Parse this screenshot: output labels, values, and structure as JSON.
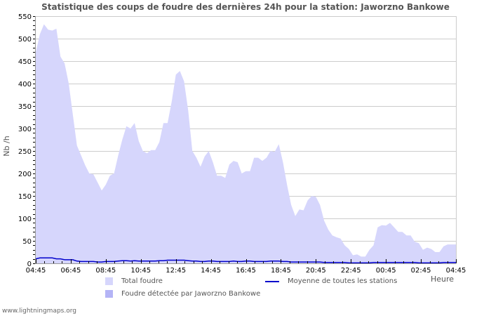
{
  "title": "Statistique des coups de foudre des dernières 24h pour la station: Jaworzno Bankowe",
  "footer": "www.lightningmaps.org",
  "legend": {
    "total": "Total foudre",
    "station": "Foudre détectée par Jaworzno Bankowe",
    "average": "Moyenne de toutes les stations"
  },
  "colors": {
    "total": "#d6d6fc",
    "station": "#b4b4f6",
    "average": "#0000cc",
    "grid": "#cccccc"
  },
  "chart_data": {
    "type": "area",
    "title": "Statistique des coups de foudre des dernières 24h pour la station: Jaworzno Bankowe",
    "xlabel": "Heure",
    "ylabel": "Nb /h",
    "ylim": [
      0,
      550
    ],
    "yticks": [
      0,
      50,
      100,
      150,
      200,
      250,
      300,
      350,
      400,
      450,
      500,
      550
    ],
    "xticks": [
      "04:45",
      "06:45",
      "08:45",
      "10:45",
      "12:45",
      "14:45",
      "16:45",
      "18:45",
      "20:45",
      "22:45",
      "00:45",
      "02:45",
      "04:45"
    ],
    "grid": true,
    "legend_position": "bottom",
    "x_step_minutes": 15,
    "series": [
      {
        "name": "Total foudre",
        "type": "area",
        "values": [
          470,
          510,
          532,
          520,
          518,
          522,
          460,
          445,
          400,
          330,
          262,
          240,
          218,
          200,
          198,
          180,
          162,
          175,
          195,
          200,
          240,
          275,
          305,
          300,
          312,
          272,
          250,
          245,
          252,
          252,
          270,
          312,
          312,
          360,
          420,
          428,
          405,
          340,
          250,
          235,
          215,
          238,
          250,
          225,
          195,
          195,
          190,
          220,
          228,
          225,
          200,
          205,
          205,
          235,
          235,
          228,
          235,
          250,
          248,
          265,
          225,
          175,
          130,
          105,
          120,
          118,
          140,
          150,
          148,
          130,
          95,
          75,
          62,
          58,
          55,
          40,
          32,
          18,
          20,
          15,
          15,
          30,
          40,
          80,
          85,
          84,
          90,
          80,
          70,
          70,
          62,
          62,
          48,
          45,
          30,
          35,
          32,
          25,
          25,
          38,
          42,
          42,
          42
        ]
      },
      {
        "name": "Foudre détectée par Jaworzno Bankowe",
        "type": "area",
        "values": []
      },
      {
        "name": "Moyenne de toutes les stations",
        "type": "line",
        "values": [
          10,
          12,
          12,
          12,
          12,
          10,
          10,
          8,
          8,
          8,
          5,
          4,
          4,
          4,
          4,
          3,
          3,
          4,
          4,
          4,
          5,
          6,
          6,
          5,
          6,
          5,
          5,
          5,
          5,
          5,
          6,
          6,
          7,
          7,
          7,
          7,
          7,
          6,
          5,
          5,
          4,
          4,
          5,
          5,
          4,
          4,
          4,
          4,
          5,
          4,
          4,
          5,
          5,
          4,
          4,
          4,
          4,
          5,
          5,
          5,
          4,
          4,
          3,
          3,
          3,
          3,
          3,
          3,
          3,
          3,
          2,
          2,
          2,
          2,
          2,
          2,
          1,
          1,
          1,
          1,
          1,
          1,
          2,
          2,
          2,
          2,
          2,
          2,
          2,
          2,
          2,
          2,
          2,
          1,
          1,
          1,
          1,
          1,
          1,
          2,
          2,
          2,
          2
        ]
      }
    ]
  }
}
